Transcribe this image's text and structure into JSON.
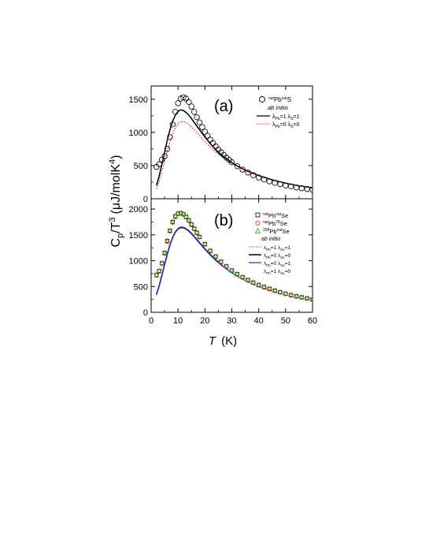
{
  "chart_data": [
    {
      "type": "scatter",
      "panel_label": "(a)",
      "xlim": [
        0,
        60
      ],
      "ylim": [
        0,
        1700
      ],
      "yticks": [
        0,
        500,
        1000,
        1500
      ],
      "grid": false,
      "legend_position": "top-right",
      "legend_header": "ab initio",
      "series": [
        {
          "name": "natPbnatS",
          "kind": "markers",
          "marker": "circle",
          "color": "#000000",
          "x": [
            2,
            3,
            4,
            5,
            6,
            7,
            8,
            9,
            10,
            11,
            12,
            13,
            14,
            15,
            16,
            17,
            18,
            19,
            20,
            21,
            22,
            23,
            24,
            25,
            26,
            27,
            28,
            29,
            30,
            32,
            34,
            36,
            38,
            40,
            42,
            44,
            46,
            48,
            50,
            52,
            54,
            56,
            58,
            60
          ],
          "y": [
            480,
            520,
            590,
            640,
            750,
            930,
            1120,
            1310,
            1440,
            1510,
            1530,
            1510,
            1460,
            1390,
            1310,
            1230,
            1150,
            1080,
            1010,
            950,
            890,
            840,
            790,
            740,
            700,
            660,
            620,
            585,
            550,
            490,
            440,
            395,
            355,
            320,
            290,
            262,
            240,
            220,
            200,
            185,
            170,
            158,
            146,
            136
          ]
        },
        {
          "name": "λPb=1 λS=1",
          "kind": "line",
          "dash": "solid",
          "color": "#000000",
          "x": [
            2,
            3,
            4,
            5,
            6,
            7,
            8,
            9,
            10,
            11,
            12,
            13,
            14,
            15,
            16,
            18,
            20,
            22,
            24,
            26,
            28,
            30,
            32,
            35,
            40,
            45,
            50,
            55,
            60
          ],
          "y": [
            200,
            350,
            520,
            700,
            880,
            1040,
            1170,
            1260,
            1320,
            1340,
            1330,
            1300,
            1260,
            1210,
            1150,
            1040,
            930,
            830,
            740,
            665,
            600,
            545,
            495,
            430,
            350,
            285,
            235,
            195,
            165
          ]
        },
        {
          "name": "λPb=0 λS=0",
          "kind": "line",
          "dash": "dotted",
          "color": "#e02020",
          "x": [
            2,
            3,
            4,
            5,
            6,
            7,
            8,
            9,
            10,
            11,
            12,
            13,
            14,
            15,
            16,
            18,
            20,
            22,
            24,
            26,
            28,
            30,
            32,
            35,
            40,
            45,
            50,
            55,
            60
          ],
          "y": [
            150,
            270,
            410,
            560,
            720,
            860,
            980,
            1070,
            1130,
            1160,
            1165,
            1150,
            1120,
            1080,
            1040,
            950,
            860,
            780,
            705,
            640,
            580,
            530,
            485,
            425,
            345,
            283,
            233,
            194,
            163
          ]
        }
      ]
    },
    {
      "type": "scatter",
      "panel_label": "(b)",
      "xlim": [
        0,
        60
      ],
      "ylim": [
        0,
        2200
      ],
      "yticks": [
        0,
        500,
        1000,
        1500,
        2000
      ],
      "xticks": [
        0,
        10,
        20,
        30,
        40,
        50,
        60
      ],
      "grid": false,
      "legend_position": "top-right",
      "legend_header": "ab initio",
      "series": [
        {
          "name": "natPbnatSe",
          "kind": "markers",
          "marker": "square",
          "color": "#000000",
          "x": [
            2,
            3,
            4,
            5,
            6,
            7,
            8,
            9,
            10,
            11,
            12,
            13,
            14,
            15,
            16,
            17,
            18,
            20,
            22,
            24,
            26,
            28,
            30,
            32,
            34,
            36,
            38,
            40,
            42,
            44,
            46,
            48,
            50,
            52,
            54,
            56,
            58,
            60
          ],
          "y": [
            720,
            800,
            950,
            1150,
            1380,
            1580,
            1750,
            1860,
            1910,
            1920,
            1900,
            1850,
            1780,
            1700,
            1620,
            1540,
            1460,
            1320,
            1190,
            1080,
            980,
            890,
            810,
            740,
            680,
            625,
            575,
            530,
            490,
            455,
            420,
            390,
            360,
            335,
            310,
            290,
            270,
            250
          ]
        },
        {
          "name": "nat Pb78Se",
          "kind": "markers",
          "marker": "circle",
          "color": "#e02020",
          "x": [
            2,
            3,
            4,
            5,
            6,
            7,
            8,
            9,
            10,
            11,
            12,
            13,
            14,
            15,
            16,
            17,
            18,
            20,
            22,
            24,
            26,
            28,
            30,
            32,
            34,
            36,
            38,
            40,
            42,
            44,
            46,
            48,
            50,
            52,
            54,
            56,
            58,
            60
          ],
          "y": [
            715,
            795,
            945,
            1140,
            1370,
            1570,
            1740,
            1850,
            1905,
            1915,
            1895,
            1845,
            1775,
            1695,
            1615,
            1535,
            1455,
            1315,
            1185,
            1075,
            975,
            885,
            805,
            735,
            675,
            620,
            570,
            525,
            485,
            450,
            415,
            385,
            355,
            330,
            305,
            285,
            265,
            245
          ]
        },
        {
          "name": "208PbnatSe",
          "kind": "markers",
          "marker": "triangle",
          "color": "#22aa22",
          "x": [
            2,
            3,
            4,
            5,
            6,
            7,
            8,
            9,
            10,
            11,
            12,
            13,
            14,
            15,
            16,
            17,
            18,
            20,
            22,
            24,
            26,
            28,
            30,
            32,
            34,
            36,
            38,
            40,
            42,
            44,
            46,
            48,
            50,
            52,
            54,
            56,
            58,
            60
          ],
          "y": [
            725,
            805,
            955,
            1155,
            1385,
            1585,
            1755,
            1865,
            1915,
            1925,
            1905,
            1855,
            1785,
            1705,
            1625,
            1545,
            1465,
            1325,
            1195,
            1085,
            985,
            895,
            815,
            745,
            685,
            630,
            580,
            535,
            495,
            460,
            425,
            395,
            365,
            340,
            315,
            295,
            275,
            255
          ]
        },
        {
          "name": "λPb=1 λSe=1",
          "kind": "line",
          "dash": "dotted",
          "color": "#e02020",
          "x": [
            2,
            3,
            4,
            5,
            6,
            7,
            8,
            9,
            10,
            11,
            12,
            13,
            14,
            15,
            16,
            18,
            20,
            22,
            24,
            26,
            28,
            30,
            32,
            35,
            40,
            45,
            50,
            55,
            60
          ],
          "y": [
            450,
            650,
            880,
            1120,
            1350,
            1540,
            1680,
            1770,
            1810,
            1820,
            1800,
            1760,
            1710,
            1650,
            1580,
            1440,
            1300,
            1175,
            1065,
            965,
            880,
            800,
            730,
            640,
            520,
            430,
            355,
            300,
            255
          ]
        },
        {
          "name": "λPb=0 λSe=0",
          "kind": "line",
          "dash": "solid",
          "color": "#000000",
          "x": [
            2,
            3,
            4,
            5,
            6,
            7,
            8,
            9,
            10,
            11,
            12,
            13,
            14,
            15,
            16,
            18,
            20,
            22,
            24,
            26,
            28,
            30,
            32,
            35,
            40,
            45,
            50,
            55,
            60
          ],
          "y": [
            350,
            520,
            720,
            930,
            1130,
            1310,
            1450,
            1560,
            1620,
            1650,
            1645,
            1620,
            1580,
            1530,
            1470,
            1350,
            1230,
            1120,
            1020,
            930,
            850,
            775,
            710,
            625,
            510,
            420,
            350,
            295,
            250
          ]
        },
        {
          "name": "λPb=0 λSe=1",
          "kind": "line",
          "dash": "solid",
          "color": "#2233bb",
          "x": [
            2,
            3,
            4,
            5,
            6,
            7,
            8,
            9,
            10,
            11,
            12,
            13,
            14,
            15,
            16,
            18,
            20,
            22,
            24,
            26,
            28,
            30,
            32,
            35,
            40,
            45,
            50,
            55,
            60
          ],
          "y": [
            340,
            510,
            710,
            920,
            1120,
            1300,
            1440,
            1550,
            1610,
            1640,
            1635,
            1610,
            1570,
            1520,
            1460,
            1340,
            1220,
            1110,
            1010,
            920,
            840,
            765,
            700,
            615,
            500,
            410,
            340,
            285,
            240
          ]
        },
        {
          "name": "λPb=1 λSe=0",
          "kind": "line",
          "dash": "solid",
          "color": "#ffffff",
          "x": [
            2,
            3,
            4,
            5,
            6,
            7,
            8,
            9,
            10,
            11,
            12,
            13,
            14,
            15,
            16,
            18,
            20,
            22,
            24,
            26,
            28,
            30,
            32,
            35,
            40,
            45,
            50,
            55,
            60
          ],
          "y": [
            440,
            640,
            870,
            1110,
            1340,
            1530,
            1670,
            1760,
            1800,
            1810,
            1790,
            1750,
            1700,
            1640,
            1570,
            1430,
            1290,
            1165,
            1055,
            955,
            870,
            790,
            720,
            630,
            512,
            423,
            350,
            295,
            250
          ]
        }
      ]
    }
  ],
  "axes": {
    "xlabel_var": "T",
    "xlabel_unit": "(K)",
    "ylabel_main": "C",
    "ylabel_sub": "p",
    "ylabel_mid": "/T",
    "ylabel_sup": "3",
    "ylabel_unit": "(μJ/molK",
    "ylabel_unit_sup": "4",
    "ylabel_close": ")"
  },
  "legend_a": {
    "entries": [
      {
        "pre": "nat",
        "a": "Pb",
        "sup": "nat",
        "b": "S"
      },
      {
        "header": "ab initio"
      },
      {
        "text": "λ",
        "sub1": "Pb",
        "mid": "=1 λ",
        "sub2": "S",
        "end": "=1"
      },
      {
        "text": "λ",
        "sub1": "Pb",
        "mid": "=0 λ",
        "sub2": "S",
        "end": "=0"
      }
    ]
  },
  "legend_b": {
    "entries": [
      {
        "pre": "nat",
        "a": "Pb",
        "sup": "nat",
        "b": "Se"
      },
      {
        "pre": "nat",
        "a": "Pb",
        "sup": "78",
        "b": "Se"
      },
      {
        "pre": "208",
        "a": "Pb",
        "sup": "nat",
        "b": "Se"
      },
      {
        "header": "ab initio"
      },
      {
        "text": "λ",
        "sub1": "Pb",
        "mid": "=1 λ",
        "sub2": "Se",
        "end": "=1"
      },
      {
        "text": "λ",
        "sub1": "Pb",
        "mid": "=0 λ",
        "sub2": "Se",
        "end": "=0"
      },
      {
        "text": "λ",
        "sub1": "Pb",
        "mid": "=0 λ",
        "sub2": "Se",
        "end": "=1"
      },
      {
        "text": "λ",
        "sub1": "Pb",
        "mid": "=1 λ",
        "sub2": "Se",
        "end": "=0"
      }
    ]
  }
}
